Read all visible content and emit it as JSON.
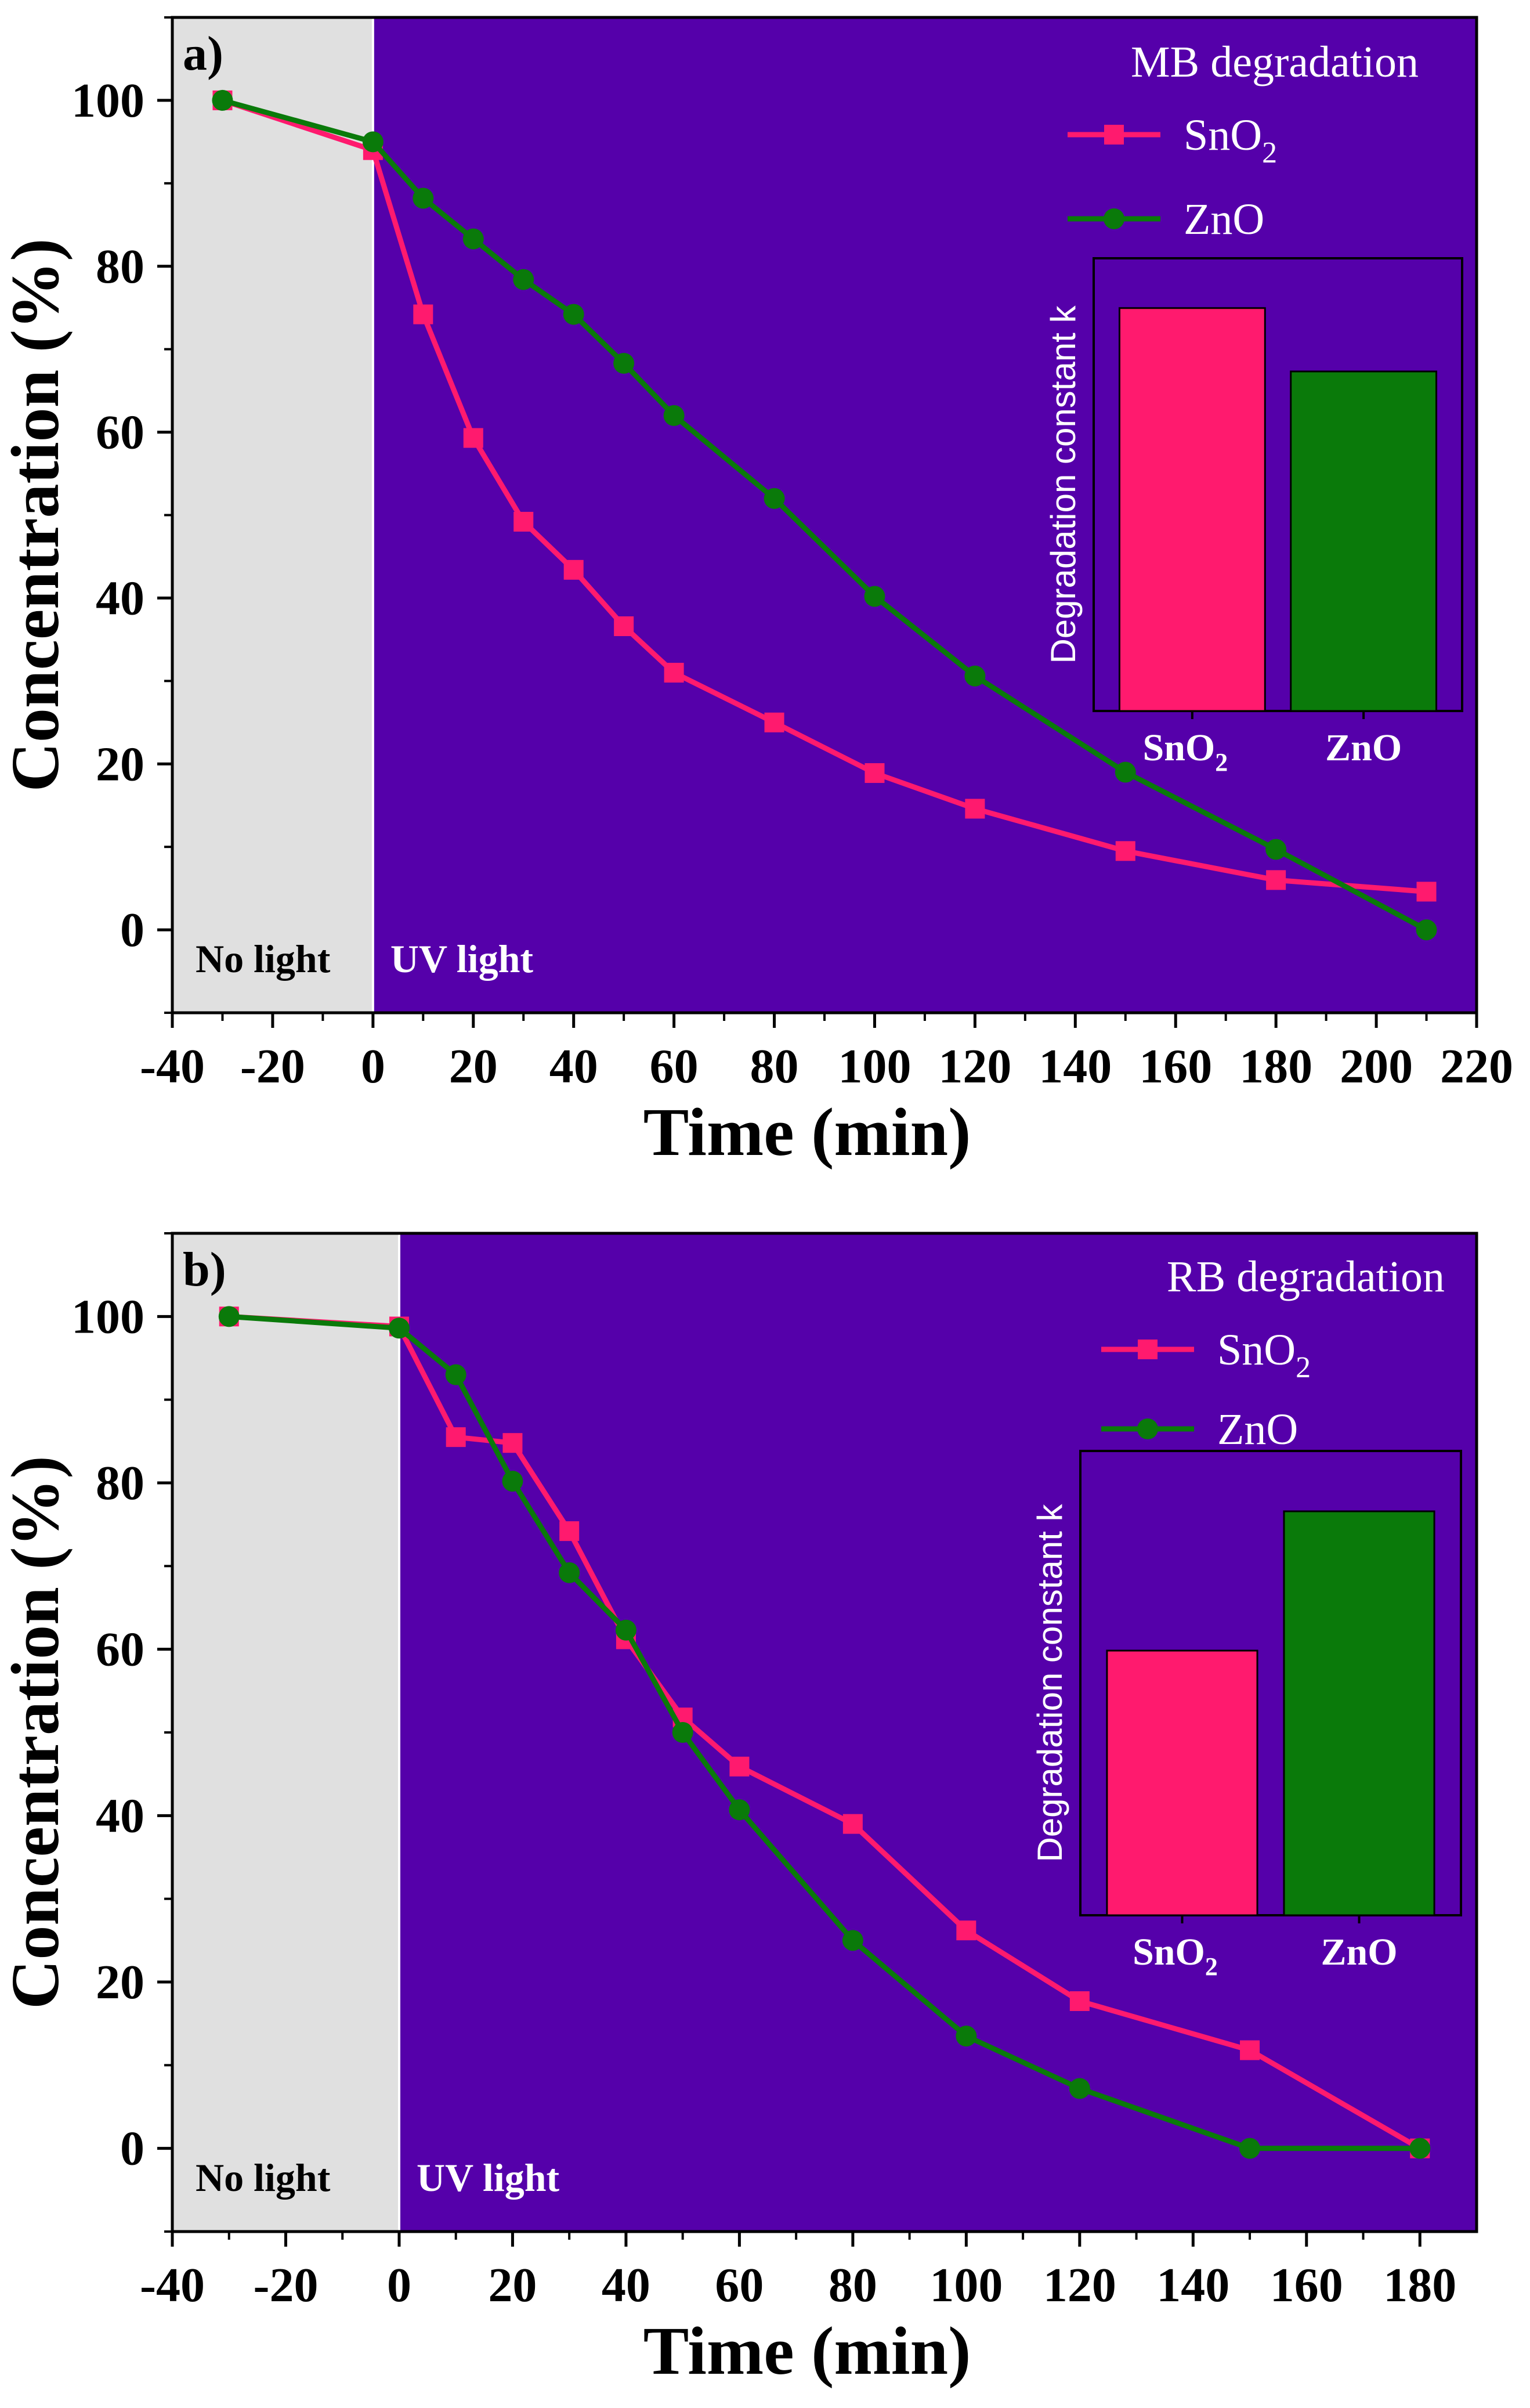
{
  "colors": {
    "background_uv": "#5500aa",
    "background_dark": "#e0e0e0",
    "sno2": "#ff1a6e",
    "zno": "#0a7a0a",
    "axis": "#000000"
  },
  "chart_data": [
    {
      "type": "line",
      "panel_label": "a)",
      "title": "MB degradation",
      "xlabel": "Time (min)",
      "ylabel": "Concentration (%)",
      "xlim": [
        -40,
        220
      ],
      "ylim": [
        -10,
        110
      ],
      "xticks": [
        -40,
        -20,
        0,
        20,
        40,
        60,
        80,
        100,
        120,
        140,
        160,
        180,
        200,
        220
      ],
      "yticks": [
        0,
        20,
        40,
        60,
        80,
        100
      ],
      "dark_region": {
        "from": -40,
        "to": 0,
        "label": "No light"
      },
      "light_region": {
        "label": "UV light"
      },
      "legend_position": "top-right",
      "series": [
        {
          "name": "SnO2",
          "legend_main": "SnO",
          "legend_sub": "2",
          "marker": "square",
          "x": [
            -30,
            0,
            10,
            20,
            30,
            40,
            50,
            60,
            80,
            100,
            120,
            150,
            180,
            210
          ],
          "y": [
            100,
            94,
            74.2,
            59.3,
            49.2,
            43.4,
            36.6,
            31,
            25,
            18.9,
            14.6,
            9.5,
            6,
            4.6
          ]
        },
        {
          "name": "ZnO",
          "legend_main": "ZnO",
          "legend_sub": "",
          "marker": "circle",
          "x": [
            -30,
            0,
            10,
            20,
            30,
            40,
            50,
            60,
            80,
            100,
            120,
            150,
            180,
            210
          ],
          "y": [
            100,
            95,
            88.2,
            83.3,
            78.4,
            74.2,
            68.3,
            62,
            52,
            40.2,
            30.6,
            19,
            9.7,
            0
          ]
        }
      ],
      "inset": {
        "type": "bar",
        "ylabel": "Degradation constant k",
        "categories": [
          {
            "main": "SnO",
            "sub": "2"
          },
          {
            "main": "ZnO",
            "sub": ""
          }
        ],
        "values": [
          0.89,
          0.75
        ],
        "ylim": [
          0,
          1
        ]
      }
    },
    {
      "type": "line",
      "panel_label": "b)",
      "title": "RB degradation",
      "xlabel": "Time (min)",
      "ylabel": "Concentration (%)",
      "xlim": [
        -40,
        190
      ],
      "ylim": [
        -10,
        110
      ],
      "xticks": [
        -40,
        -20,
        0,
        20,
        40,
        60,
        80,
        100,
        120,
        140,
        160,
        180
      ],
      "yticks": [
        0,
        20,
        40,
        60,
        80,
        100
      ],
      "dark_region": {
        "from": -40,
        "to": 0,
        "label": "No light"
      },
      "light_region": {
        "label": "UV light"
      },
      "legend_position": "top-right",
      "series": [
        {
          "name": "SnO2",
          "legend_main": "SnO",
          "legend_sub": "2",
          "marker": "square",
          "x": [
            -30,
            0,
            10,
            20,
            30,
            40,
            50,
            60,
            80,
            100,
            120,
            150,
            180
          ],
          "y": [
            100,
            98.8,
            85.5,
            84.8,
            74.2,
            61.2,
            51.8,
            45.9,
            39,
            26.2,
            17.7,
            11.8,
            0
          ]
        },
        {
          "name": "ZnO",
          "legend_main": "ZnO",
          "legend_sub": "",
          "marker": "circle",
          "x": [
            -30,
            0,
            10,
            20,
            30,
            40,
            50,
            60,
            80,
            100,
            120,
            150,
            180
          ],
          "y": [
            100,
            98.6,
            93,
            80.2,
            69.2,
            62.3,
            50,
            40.7,
            25,
            13.5,
            7.2,
            0,
            0
          ]
        }
      ],
      "inset": {
        "type": "bar",
        "ylabel": "Degradation constant k",
        "categories": [
          {
            "main": "SnO",
            "sub": "2"
          },
          {
            "main": "ZnO",
            "sub": ""
          }
        ],
        "values": [
          0.57,
          0.87
        ],
        "ylim": [
          0,
          1
        ]
      }
    }
  ]
}
